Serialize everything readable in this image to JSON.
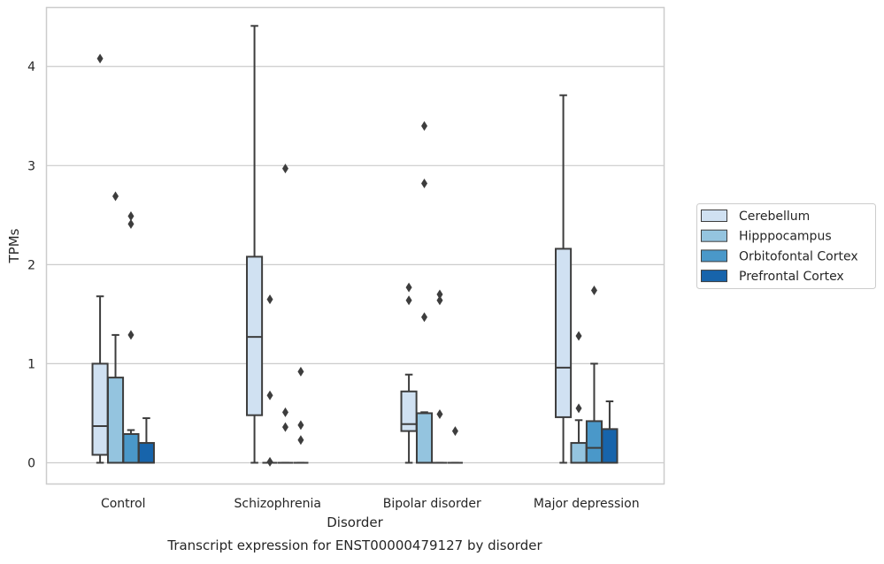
{
  "chart_data": {
    "type": "boxplot",
    "title": "Transcript expression for ENST00000479127 by disorder",
    "xlabel": "Disorder",
    "ylabel": "TPMs",
    "ylim": [
      -0.21,
      4.6
    ],
    "yticks": [
      0,
      1,
      2,
      3,
      4
    ],
    "grid": "horizontal",
    "legend_position": "right",
    "categories": [
      "Control",
      "Schizophrenia",
      "Bipolar disorder",
      "Major depression"
    ],
    "series": [
      {
        "name": "Cerebellum",
        "color": "#d0e1f2",
        "boxes": [
          {
            "whislo": 0.0,
            "q1": 0.08,
            "med": 0.37,
            "q3": 1.0,
            "whishi": 1.68,
            "fliers": [
              4.08
            ]
          },
          {
            "whislo": 0.0,
            "q1": 0.48,
            "med": 1.27,
            "q3": 2.08,
            "whishi": 4.41,
            "fliers": []
          },
          {
            "whislo": 0.0,
            "q1": 0.32,
            "med": 0.39,
            "q3": 0.72,
            "whishi": 0.89,
            "fliers": [
              1.77,
              1.64
            ]
          },
          {
            "whislo": 0.0,
            "q1": 0.46,
            "med": 0.96,
            "q3": 2.16,
            "whishi": 3.71,
            "fliers": []
          }
        ]
      },
      {
        "name": "Hipppocampus",
        "color": "#94c4df",
        "boxes": [
          {
            "whislo": 0.0,
            "q1": 0.0,
            "med": 0.0,
            "q3": 0.86,
            "whishi": 1.29,
            "fliers": [
              2.69
            ]
          },
          {
            "whislo": 0.0,
            "q1": 0.0,
            "med": 0.0,
            "q3": 0.0,
            "whishi": 0.0,
            "fliers": [
              1.65,
              0.68,
              0.01
            ]
          },
          {
            "whislo": 0.0,
            "q1": 0.0,
            "med": 0.0,
            "q3": 0.5,
            "whishi": 0.51,
            "fliers": [
              3.4,
              2.82,
              1.47
            ]
          },
          {
            "whislo": 0.0,
            "q1": 0.0,
            "med": 0.0,
            "q3": 0.2,
            "whishi": 0.43,
            "fliers": [
              1.28,
              0.55
            ]
          }
        ]
      },
      {
        "name": "Orbitofontal Cortex",
        "color": "#4a98c9",
        "boxes": [
          {
            "whislo": 0.0,
            "q1": 0.0,
            "med": 0.0,
            "q3": 0.29,
            "whishi": 0.33,
            "fliers": [
              2.49,
              2.41,
              1.29
            ]
          },
          {
            "whislo": 0.0,
            "q1": 0.0,
            "med": 0.0,
            "q3": 0.0,
            "whishi": 0.0,
            "fliers": [
              2.97,
              0.51,
              0.36
            ]
          },
          {
            "whislo": 0.0,
            "q1": 0.0,
            "med": 0.0,
            "q3": 0.0,
            "whishi": 0.0,
            "fliers": [
              1.7,
              1.64,
              0.49
            ]
          },
          {
            "whislo": 0.0,
            "q1": 0.0,
            "med": 0.15,
            "q3": 0.42,
            "whishi": 1.0,
            "fliers": [
              1.74
            ]
          }
        ]
      },
      {
        "name": "Prefrontal Cortex",
        "color": "#1764ab",
        "boxes": [
          {
            "whislo": 0.0,
            "q1": 0.0,
            "med": 0.0,
            "q3": 0.2,
            "whishi": 0.45,
            "fliers": []
          },
          {
            "whislo": 0.0,
            "q1": 0.0,
            "med": 0.0,
            "q3": 0.0,
            "whishi": 0.0,
            "fliers": [
              0.92,
              0.38,
              0.23
            ]
          },
          {
            "whislo": 0.0,
            "q1": 0.0,
            "med": 0.0,
            "q3": 0.0,
            "whishi": 0.0,
            "fliers": [
              0.32
            ]
          },
          {
            "whislo": 0.0,
            "q1": 0.0,
            "med": 0.0,
            "q3": 0.34,
            "whishi": 0.62,
            "fliers": []
          }
        ]
      }
    ]
  }
}
